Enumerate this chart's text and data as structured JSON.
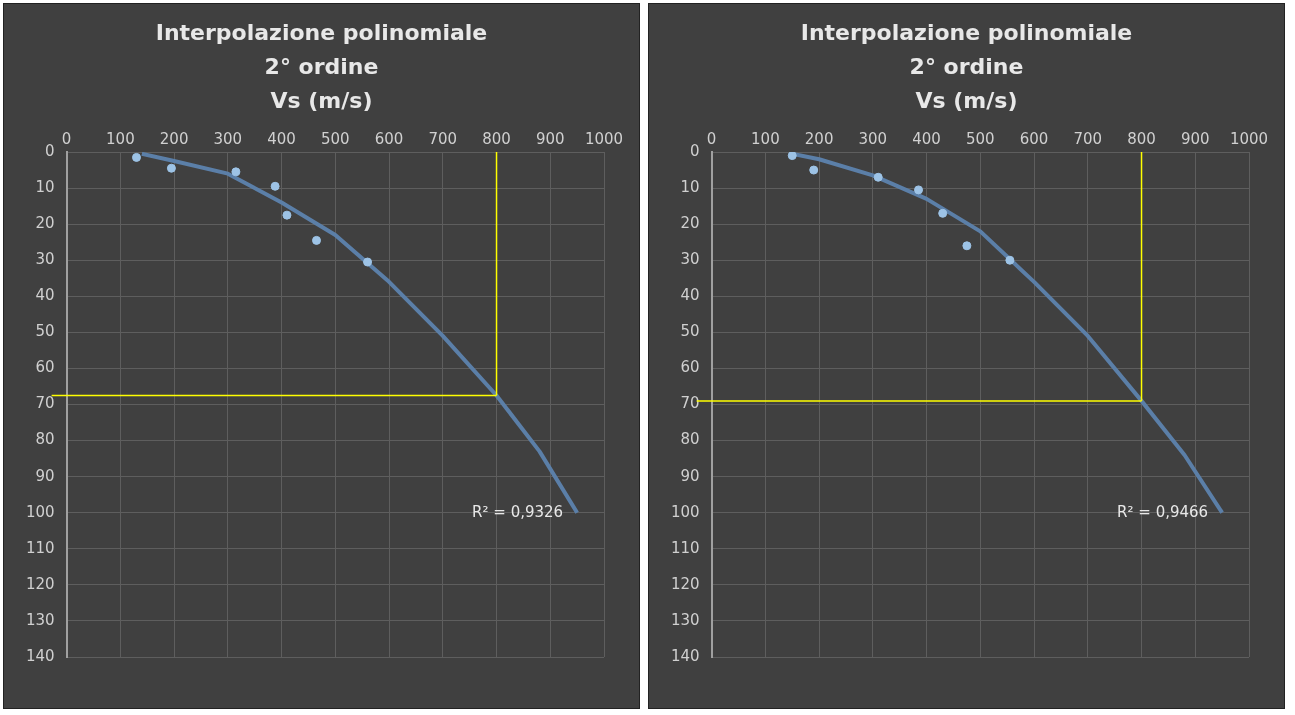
{
  "chart_data": [
    {
      "type": "scatter",
      "title": "Interpolazione polinomiale 2° ordine",
      "subtitle": "Vs (m/s)",
      "xlim": [
        0,
        1000
      ],
      "xticks": [
        0,
        100,
        200,
        300,
        400,
        500,
        600,
        700,
        800,
        900,
        1000
      ],
      "ylim": [
        140,
        0
      ],
      "yticks": [
        0,
        10,
        20,
        30,
        40,
        50,
        60,
        70,
        80,
        90,
        100,
        110,
        120,
        130,
        140
      ],
      "grid": true,
      "legend": false,
      "marker": "circle",
      "series": [
        {
          "type": "scatter",
          "color": "#9dc3e6",
          "x": [
            130,
            195,
            315,
            388,
            410,
            465,
            560
          ],
          "values": [
            1.5,
            4.5,
            5.5,
            9.5,
            17.5,
            24.5,
            30.5
          ]
        },
        {
          "type": "line",
          "color": "#5b7fa8",
          "marker": "none",
          "x": [
            140,
            200,
            300,
            400,
            500,
            600,
            700,
            800,
            880,
            950
          ],
          "values": [
            0.5,
            2.5,
            6,
            14,
            23,
            36,
            51,
            67.5,
            83,
            100
          ]
        }
      ],
      "ref_lines": [
        {
          "axis": "x",
          "value": 800,
          "color": "#ffff00"
        },
        {
          "axis": "y",
          "value": 67.5,
          "color": "#ffff00"
        }
      ],
      "annotations": [
        {
          "text": "R² = 0,9326",
          "x": 950,
          "y": 100
        }
      ]
    },
    {
      "type": "scatter",
      "title": "Interpolazione polinomiale 2° ordine",
      "subtitle": "Vs (m/s)",
      "xlim": [
        0,
        1000
      ],
      "xticks": [
        0,
        100,
        200,
        300,
        400,
        500,
        600,
        700,
        800,
        900,
        1000
      ],
      "ylim": [
        140,
        0
      ],
      "yticks": [
        0,
        10,
        20,
        30,
        40,
        50,
        60,
        70,
        80,
        90,
        100,
        110,
        120,
        130,
        140
      ],
      "grid": true,
      "legend": false,
      "marker": "circle",
      "series": [
        {
          "type": "scatter",
          "color": "#9dc3e6",
          "x": [
            150,
            190,
            310,
            385,
            430,
            475,
            555
          ],
          "values": [
            1,
            5,
            7,
            10.5,
            17,
            26,
            30
          ]
        },
        {
          "type": "line",
          "color": "#5b7fa8",
          "marker": "none",
          "x": [
            150,
            200,
            300,
            400,
            500,
            600,
            700,
            800,
            880,
            950
          ],
          "values": [
            0.5,
            2,
            6.5,
            13,
            22,
            36,
            51,
            69,
            84,
            100
          ]
        }
      ],
      "ref_lines": [
        {
          "axis": "x",
          "value": 800,
          "color": "#ffff00"
        },
        {
          "axis": "y",
          "value": 69,
          "color": "#ffff00"
        }
      ],
      "annotations": [
        {
          "text": "R² = 0,9466",
          "x": 950,
          "y": 100
        }
      ]
    }
  ]
}
